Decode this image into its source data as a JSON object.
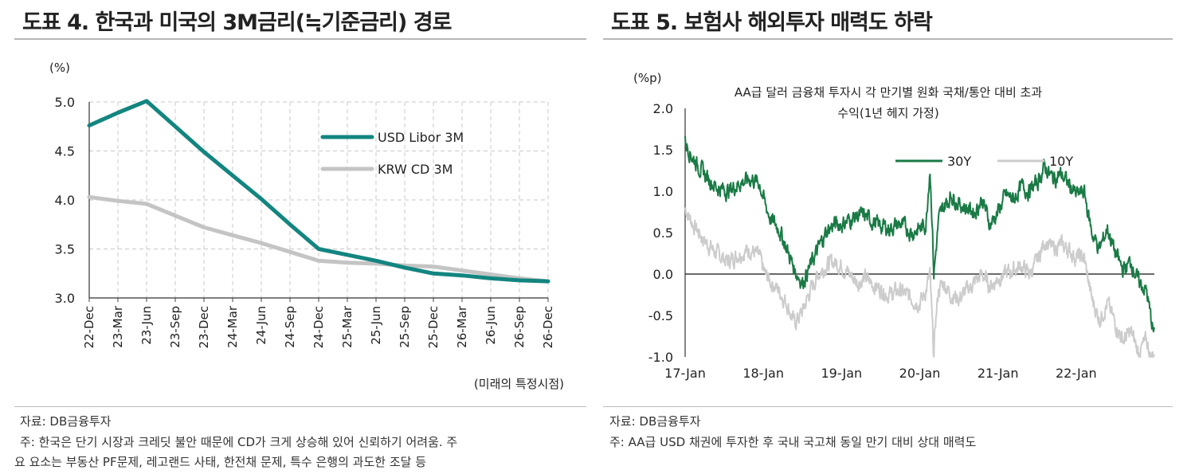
{
  "left": {
    "title": "도표 4. 한국과 미국의 3M금리(≒기준금리) 경로",
    "source": "자료: DB금융투자",
    "note_line1": "주: 한국은 단기 시장과 크레딧 불안 때문에 CD가 크게 상승해 있어 신뢰하기 어려움. 주",
    "note_line2": "요 요소는 부동산 PF문제, 레고랜드 사태, 한전채 문제, 특수 은행의 과도한 조달 등"
  },
  "right": {
    "title": "도표 5. 보험사 해외투자 매력도 하락",
    "source": "자료: DB금융투자",
    "note": "주: AA급 USD 채권에 투자한 후 국내 국고채 동일 만기 대비 상대 매력도"
  },
  "chart_data": [
    {
      "type": "line",
      "title": "",
      "ylabel": "(%)",
      "xlabel": "(미래의 특정시점)",
      "ylim": [
        3.0,
        5.0
      ],
      "yticks": [
        "5.0",
        "4.5",
        "4.0",
        "3.5",
        "3.0"
      ],
      "grid": true,
      "legend_position": "top-right",
      "categories": [
        "22-Dec",
        "23-Mar",
        "23-Jun",
        "23-Sep",
        "23-Dec",
        "24-Mar",
        "24-Jun",
        "24-Sep",
        "24-Dec",
        "25-Mar",
        "25-Jun",
        "25-Sep",
        "25-Dec",
        "26-Mar",
        "26-Jun",
        "26-Sep",
        "26-Dec"
      ],
      "series": [
        {
          "name": "USD Libor 3M",
          "color": "#138580",
          "values": [
            4.76,
            4.89,
            5.01,
            4.75,
            4.49,
            4.25,
            4.01,
            3.75,
            3.5,
            3.44,
            3.38,
            3.31,
            3.25,
            3.23,
            3.2,
            3.18,
            3.17
          ]
        },
        {
          "name": "KRW CD 3M",
          "color": "#c4c4c4",
          "values": [
            4.03,
            3.99,
            3.96,
            3.84,
            3.72,
            3.64,
            3.56,
            3.47,
            3.38,
            3.36,
            3.35,
            3.33,
            3.32,
            3.28,
            3.24,
            3.2,
            3.17
          ]
        }
      ]
    },
    {
      "type": "line",
      "title": "AA급 달러 금융채 투자시 각 만기별 원화 국채/통안 대비 초과",
      "subtitle": "수익(1년 헤지 가정)",
      "ylabel": "(%p)",
      "ylim": [
        -1.0,
        2.0
      ],
      "yticks": [
        "2.0",
        "1.5",
        "1.0",
        "0.5",
        "0.0",
        "-0.5",
        "-1.0"
      ],
      "xticks": [
        "17-Jan",
        "18-Jan",
        "19-Jan",
        "20-Jan",
        "21-Jan",
        "22-Jan"
      ],
      "xlim_years": [
        2017.0,
        2023.0
      ],
      "legend_position": "top-right",
      "series": [
        {
          "name": "30Y",
          "color": "#1a7a45",
          "x": [
            2017.0,
            2017.1,
            2017.25,
            2017.4,
            2017.55,
            2017.7,
            2017.85,
            2017.95,
            2018.02,
            2018.1,
            2018.2,
            2018.3,
            2018.4,
            2018.5,
            2018.6,
            2018.7,
            2018.8,
            2018.9,
            2019.0,
            2019.1,
            2019.2,
            2019.3,
            2019.45,
            2019.6,
            2019.75,
            2019.9,
            2020.0,
            2020.08,
            2020.13,
            2020.16,
            2020.18,
            2020.2,
            2020.24,
            2020.3,
            2020.4,
            2020.5,
            2020.6,
            2020.7,
            2020.8,
            2020.9,
            2021.0,
            2021.1,
            2021.2,
            2021.3,
            2021.4,
            2021.5,
            2021.6,
            2021.7,
            2021.8,
            2021.9,
            2022.0,
            2022.1,
            2022.2,
            2022.3,
            2022.4,
            2022.5,
            2022.6,
            2022.7,
            2022.8,
            2022.9,
            2022.95,
            2023.0
          ],
          "y": [
            1.6,
            1.4,
            1.2,
            1.05,
            1.0,
            1.1,
            1.15,
            1.1,
            0.85,
            0.65,
            0.55,
            0.3,
            0.05,
            -0.1,
            0.1,
            0.3,
            0.5,
            0.6,
            0.6,
            0.65,
            0.7,
            0.7,
            0.6,
            0.55,
            0.6,
            0.5,
            0.55,
            0.6,
            1.3,
            0.6,
            0.0,
            0.2,
            0.65,
            0.8,
            0.95,
            0.85,
            0.8,
            0.75,
            0.9,
            0.6,
            0.75,
            0.95,
            0.9,
            1.05,
            1.0,
            1.1,
            1.3,
            1.15,
            1.2,
            1.1,
            0.95,
            1.0,
            0.5,
            0.3,
            0.55,
            0.25,
            0.05,
            0.15,
            -0.1,
            -0.2,
            -0.5,
            -0.75
          ]
        },
        {
          "name": "10Y",
          "color": "#cccccc",
          "x": [
            2017.0,
            2017.1,
            2017.25,
            2017.4,
            2017.55,
            2017.7,
            2017.85,
            2017.95,
            2018.02,
            2018.1,
            2018.2,
            2018.3,
            2018.4,
            2018.5,
            2018.6,
            2018.7,
            2018.8,
            2018.9,
            2019.0,
            2019.1,
            2019.2,
            2019.3,
            2019.45,
            2019.6,
            2019.75,
            2019.9,
            2020.0,
            2020.08,
            2020.13,
            2020.16,
            2020.18,
            2020.2,
            2020.24,
            2020.3,
            2020.4,
            2020.5,
            2020.6,
            2020.7,
            2020.8,
            2020.9,
            2021.0,
            2021.1,
            2021.2,
            2021.3,
            2021.4,
            2021.5,
            2021.6,
            2021.7,
            2021.8,
            2021.9,
            2022.0,
            2022.1,
            2022.2,
            2022.3,
            2022.4,
            2022.5,
            2022.6,
            2022.7,
            2022.8,
            2022.9,
            2022.95,
            2023.0
          ],
          "y": [
            0.8,
            0.6,
            0.4,
            0.25,
            0.15,
            0.25,
            0.3,
            0.2,
            0.0,
            -0.1,
            -0.2,
            -0.35,
            -0.6,
            -0.45,
            -0.2,
            0.0,
            0.1,
            0.15,
            0.1,
            0.0,
            -0.1,
            -0.05,
            -0.15,
            -0.25,
            -0.2,
            -0.3,
            -0.35,
            -0.2,
            0.0,
            -0.6,
            -1.0,
            -0.6,
            -0.2,
            -0.1,
            -0.25,
            -0.3,
            -0.2,
            -0.1,
            0.0,
            -0.15,
            -0.05,
            0.0,
            0.05,
            0.1,
            0.0,
            0.15,
            0.4,
            0.3,
            0.35,
            0.3,
            0.2,
            0.2,
            -0.3,
            -0.55,
            -0.35,
            -0.6,
            -0.8,
            -0.7,
            -0.95,
            -0.8,
            -1.0,
            -0.95
          ]
        }
      ]
    }
  ]
}
